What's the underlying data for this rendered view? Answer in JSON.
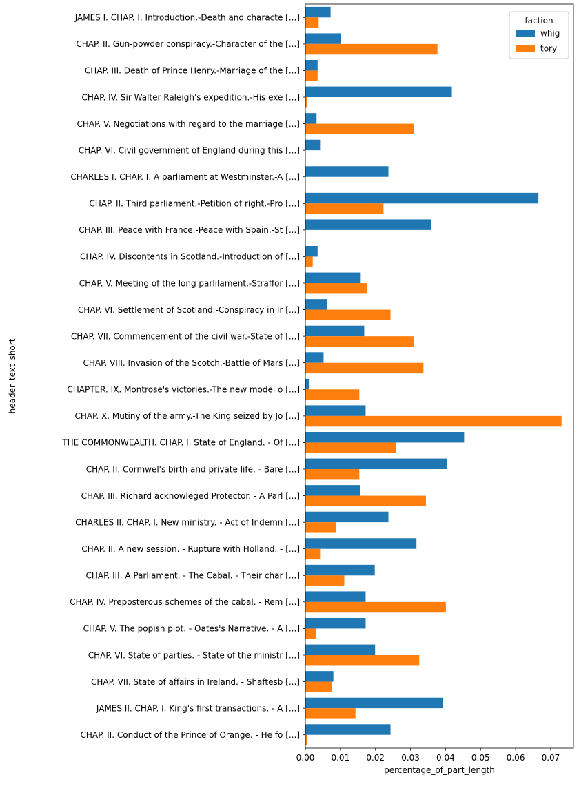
{
  "chart_data": {
    "type": "bar",
    "orientation": "horizontal",
    "xlabel": "percentage_of_part_length",
    "ylabel": "header_text_short",
    "xlim": [
      0,
      0.0765
    ],
    "xticks": [
      0.0,
      0.01,
      0.02,
      0.03,
      0.04,
      0.05,
      0.06,
      0.07
    ],
    "xtick_labels": [
      "0.00",
      "0.01",
      "0.02",
      "0.03",
      "0.04",
      "0.05",
      "0.06",
      "0.07"
    ],
    "grid": false,
    "legend": {
      "title": "faction",
      "placement": "top-right"
    },
    "categories": [
      "JAMES I. CHAP. I. Introduction.-Death and characte [...]",
      "CHAP. II. Gun-powder conspiracy.-Character of the  [...]",
      "CHAP. III. Death of Prince Henry.-Marriage of the  [...]",
      "CHAP. IV. Sir Walter Raleigh's expedition.-His exe [...]",
      "CHAP. V. Negotiations with regard to the marriage  [...]",
      "CHAP. VI. Civil government of England during this  [...]",
      "CHARLES I. CHAP. I. A parliament at Westminster.-A [...]",
      "CHAP. II. Third parliament.-Petition of right.-Pro [...]",
      "CHAP. III. Peace with France.-Peace with Spain.-St [...]",
      "CHAP. IV. Discontents in Scotland.-Introduction of [...]",
      "CHAP. V. Meeting of the long parlilament.-Straffor [...]",
      "CHAP. VI. Settlement of Scotland.-Conspiracy in Ir [...]",
      "CHAP. VII. Commencement of the civil war.-State of [...]",
      "CHAP. VIII. Invasion of the Scotch.-Battle of Mars [...]",
      "CHAPTER. IX. Montrose's victories.-The new model o [...]",
      "CHAP. X. Mutiny of the army.-The King seized by Jo [...]",
      "THE COMMONWEALTH. CHAP. I. State of England. - Of  [...]",
      "CHAP. II. Cormwel's birth and private life. - Bare [...]",
      "CHAP. III. Richard acknowleged Protector. - A Parl [...]",
      "CHARLES II. CHAP. I. New ministry. - Act of Indemn [...]",
      "CHAP. II. A new session. - Rupture with Holland. - [...]",
      "CHAP. III. A Parliament. - The Cabal. - Their char [...]",
      "CHAP. IV. Preposterous schemes of the cabal. - Rem [...]",
      "CHAP. V. The popish plot. - Oates's Narrative. - A [...]",
      "CHAP. VI. State of parties. - State of the ministr [...]",
      "CHAP. VII. State of affairs in Ireland. - Shaftesb [...]",
      "JAMES II. CHAP. I. King's first transactions. - A  [...]",
      "CHAP. II. Conduct of the Prince of Orange. - He fo [...]"
    ],
    "series": [
      {
        "name": "whig",
        "color": "#1f77b4",
        "values": [
          0.0072,
          0.0102,
          0.0035,
          0.0418,
          0.0032,
          0.0042,
          0.0237,
          0.0665,
          0.0359,
          0.0035,
          0.0158,
          0.0062,
          0.0168,
          0.0052,
          0.0012,
          0.0172,
          0.0453,
          0.0404,
          0.0156,
          0.0237,
          0.0317,
          0.0198,
          0.0172,
          0.0172,
          0.0199,
          0.008,
          0.0392,
          0.0243
        ]
      },
      {
        "name": "tory",
        "color": "#ff7f0e",
        "values": [
          0.0038,
          0.0377,
          0.0035,
          0.0006,
          0.0309,
          0.0,
          0.0,
          0.0223,
          0.0,
          0.0021,
          0.0175,
          0.0243,
          0.0309,
          0.0337,
          0.0154,
          0.0731,
          0.0258,
          0.0154,
          0.0344,
          0.0088,
          0.0042,
          0.0111,
          0.0401,
          0.0031,
          0.0325,
          0.0075,
          0.0143,
          0.0006
        ]
      }
    ]
  }
}
